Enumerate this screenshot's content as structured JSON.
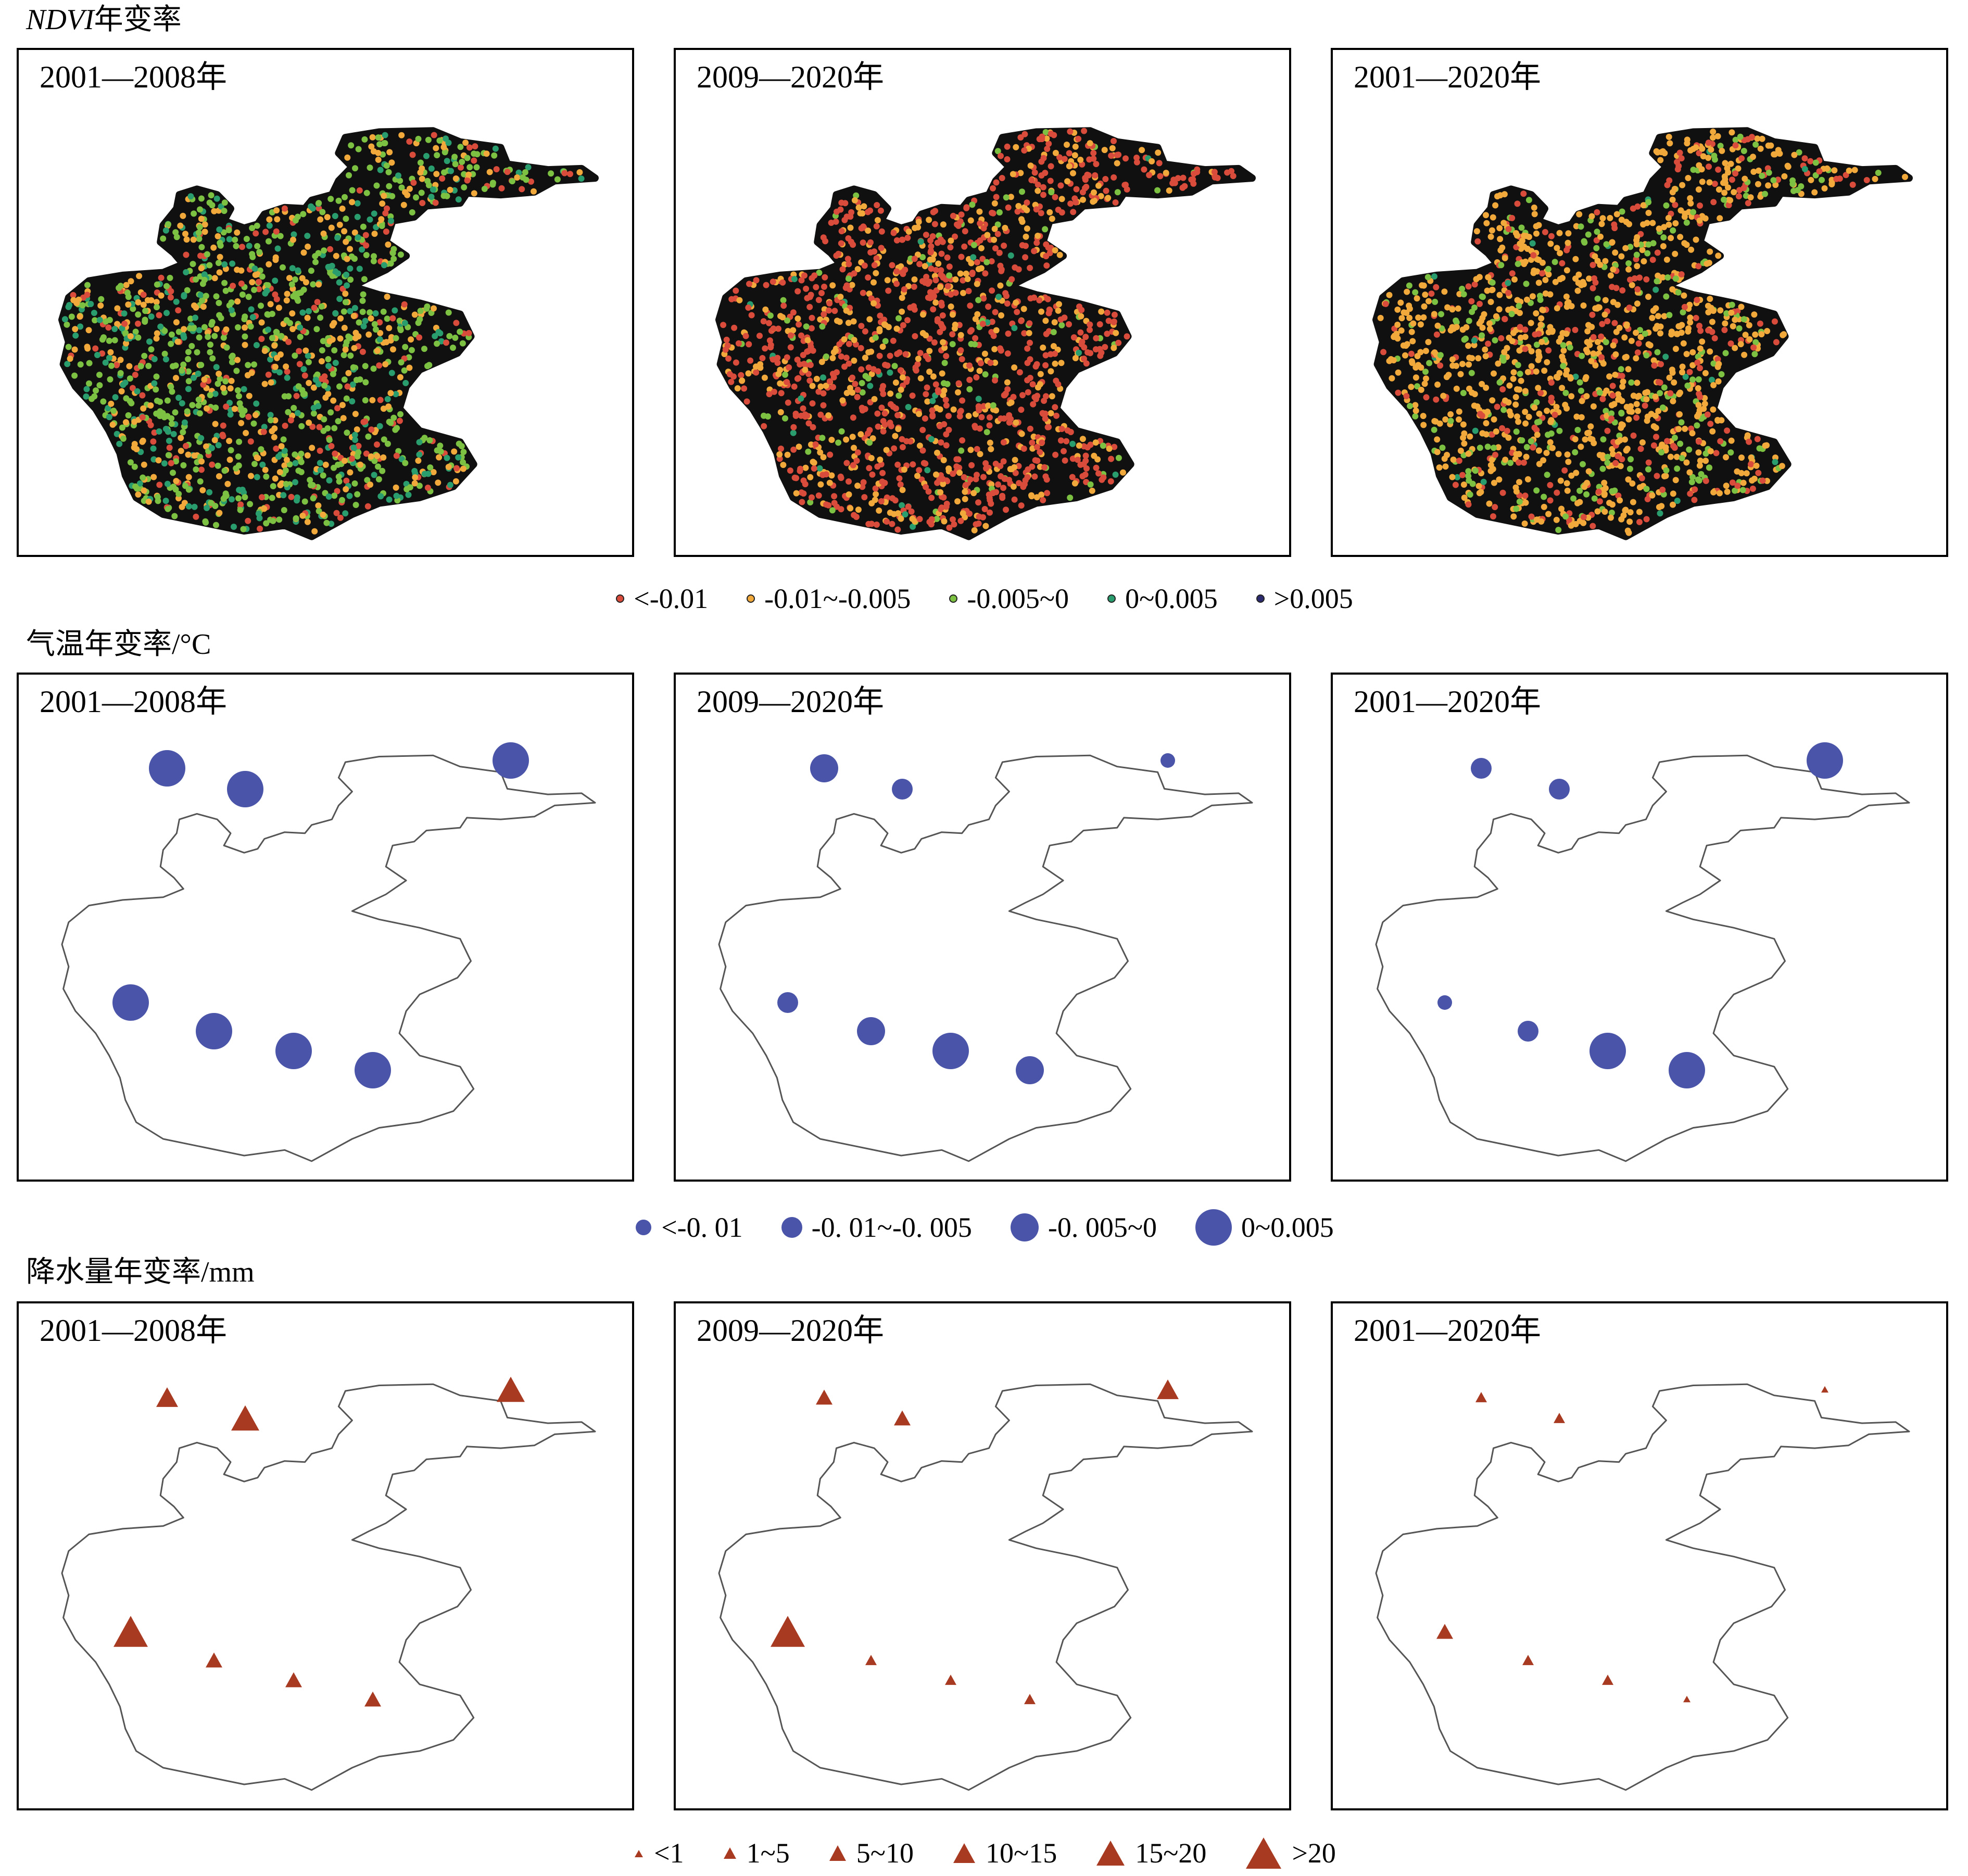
{
  "periods": [
    "2001—2008年",
    "2009—2020年",
    "2001—2020年"
  ],
  "sections": {
    "ndvi": {
      "title_italic": "NDVI",
      "title_rest": "年变率",
      "legend": [
        {
          "label": "<-0.01",
          "color": "#d94b3a"
        },
        {
          "label": "-0.01~-0.005",
          "color": "#f2a93b"
        },
        {
          "label": "-0.005~0",
          "color": "#7cc142"
        },
        {
          "label": "0~0.005",
          "color": "#2a9d6e"
        },
        {
          "label": ">0.005",
          "color": "#2b2a6e"
        }
      ],
      "panels": [
        {
          "mix": [
            0.14,
            0.24,
            0.42,
            0.2,
            0.0
          ]
        },
        {
          "mix": [
            0.62,
            0.3,
            0.06,
            0.02,
            0.0
          ]
        },
        {
          "mix": [
            0.18,
            0.62,
            0.18,
            0.02,
            0.0
          ]
        }
      ]
    },
    "temperature": {
      "title": "气温年变率/°C",
      "color": "#4a54a8",
      "legend": [
        {
          "label": "<-0. 01"
        },
        {
          "label": "-0. 01~-0. 005"
        },
        {
          "label": "-0. 005~0"
        },
        {
          "label": "0~0.005"
        }
      ],
      "stations": [
        {
          "name": "s1",
          "classes": [
            3,
            2,
            1
          ]
        },
        {
          "name": "s2",
          "classes": [
            3,
            1,
            1
          ]
        },
        {
          "name": "s3",
          "classes": [
            3,
            0,
            3
          ]
        },
        {
          "name": "s4",
          "classes": [
            3,
            1,
            0
          ]
        },
        {
          "name": "s5",
          "classes": [
            3,
            2,
            1
          ]
        },
        {
          "name": "s6",
          "classes": [
            3,
            3,
            3
          ]
        },
        {
          "name": "s7",
          "classes": [
            3,
            2,
            3
          ]
        }
      ]
    },
    "precipitation": {
      "title": "降水量年变率/mm",
      "color": "#a83a22",
      "legend": [
        {
          "label": "<1"
        },
        {
          "label": "1~5"
        },
        {
          "label": "5~10"
        },
        {
          "label": "10~15"
        },
        {
          "label": "15~20"
        },
        {
          "label": ">20"
        }
      ],
      "stations": [
        {
          "name": "s1",
          "classes": [
            3,
            2,
            1
          ]
        },
        {
          "name": "s2",
          "classes": [
            4,
            2,
            1
          ]
        },
        {
          "name": "s3",
          "classes": [
            4,
            3,
            0
          ]
        },
        {
          "name": "s4",
          "classes": [
            5,
            5,
            2
          ]
        },
        {
          "name": "s5",
          "classes": [
            2,
            1,
            1
          ]
        },
        {
          "name": "s6",
          "classes": [
            2,
            1,
            1
          ]
        },
        {
          "name": "s7",
          "classes": [
            2,
            1,
            0
          ]
        }
      ]
    }
  }
}
